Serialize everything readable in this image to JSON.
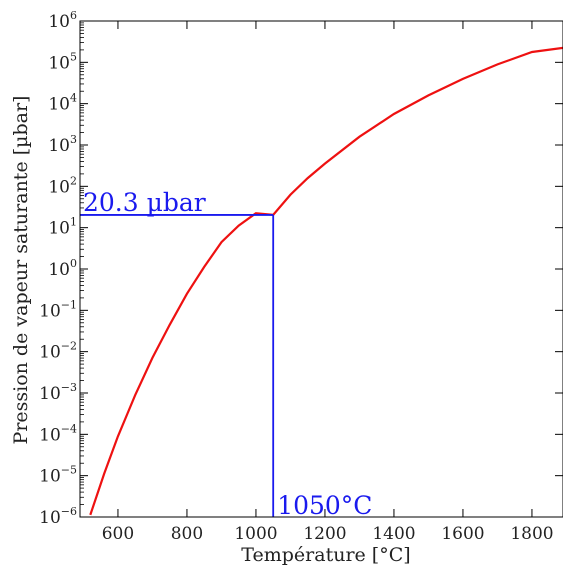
{
  "chart_data": {
    "type": "line",
    "xlabel": "Température [°C]",
    "ylabel": "Pression de vapeur saturante [µbar]",
    "yscale": "log",
    "xlim": [
      490,
      1890
    ],
    "ylim_exponents": [
      -6,
      6
    ],
    "x_ticks": [
      600,
      800,
      1000,
      1200,
      1400,
      1600,
      1800
    ],
    "y_ticks_exponents": [
      -6,
      -5,
      -4,
      -3,
      -2,
      -1,
      0,
      1,
      2,
      3,
      4,
      5,
      6
    ],
    "y_tick_base": "10",
    "grid": false,
    "series": [
      {
        "color": "#ee1111",
        "x": [
          520,
          560,
          600,
          650,
          700,
          750,
          800,
          850,
          900,
          950,
          1000,
          1050,
          1100,
          1150,
          1200,
          1300,
          1400,
          1500,
          1600,
          1700,
          1800,
          1890
        ],
        "log10_y": [
          -5.95,
          -4.95,
          -4.05,
          -3.05,
          -2.15,
          -1.35,
          -0.6,
          0.05,
          0.65,
          1.05,
          1.35,
          1.31,
          1.8,
          2.2,
          2.55,
          3.2,
          3.75,
          4.2,
          4.6,
          4.95,
          5.25,
          5.35
        ]
      }
    ],
    "marker": {
      "x": 1050,
      "y": 20.3,
      "color": "#1a1aee",
      "x_label": "1050°C",
      "y_label": "20.3 µbar"
    }
  }
}
